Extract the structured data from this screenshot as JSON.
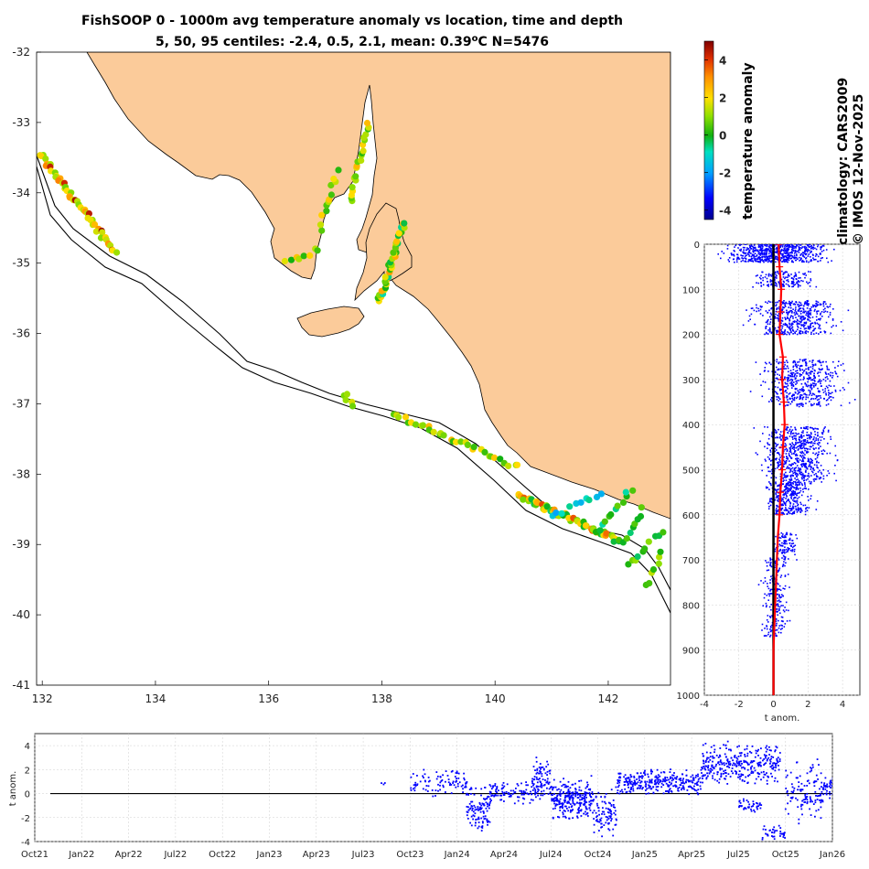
{
  "title_line1": "FishSOOP 0 - 1000m avg temperature anomaly vs location, time and depth",
  "title_line2_prefix": "5, 50, 95 centiles: -2.4, 0.5, 2.1, mean: 0.39",
  "title_line2_unit_sup": "o",
  "title_line2_suffix": "C N=5476",
  "side_text_1": "climatology: CARS2009",
  "side_text_2": "© IMOS 12-Nov-2025",
  "colorbar": {
    "label": "temperature anomaly",
    "range": [
      -4.5,
      5
    ],
    "ticks": [
      "4",
      "2",
      "0",
      "-2",
      "-4"
    ],
    "tick_values": [
      4,
      2,
      0,
      -2,
      -4
    ]
  },
  "colors": {
    "land": "#fbcb9a",
    "ocean": "#ffffff",
    "points": "#0000ff",
    "profile": "#ff0000"
  },
  "map": {
    "lon_range": [
      131.9,
      143.1
    ],
    "lat_range": [
      -41,
      -32
    ],
    "x_ticks": [
      "132",
      "134",
      "136",
      "138",
      "140",
      "142"
    ],
    "y_ticks": [
      "-32",
      "-33",
      "-34",
      "-35",
      "-36",
      "-37",
      "-38",
      "-39",
      "-40",
      "-41"
    ]
  },
  "chart_data": [
    {
      "type": "scatter",
      "name": "map",
      "title": "FishSOOP 0 - 1000m avg temperature anomaly vs location, time and depth",
      "xlabel": "",
      "ylabel": "",
      "xlim": [
        131.9,
        143.1
      ],
      "ylim": [
        -41,
        -32
      ],
      "color_variable": "temperature anomaly",
      "tracks": [
        {
          "name": "west-shelf",
          "from": [
            131.95,
            -33.45
          ],
          "to": [
            133.3,
            -34.85
          ],
          "n": 50,
          "anoms": [
            1.6,
            0.9,
            2.0,
            1.2,
            2.6,
            3.0,
            1.4,
            4.4
          ]
        },
        {
          "name": "spencer-gulf",
          "from": [
            137.45,
            -34.1
          ],
          "to": [
            137.75,
            -33.0
          ],
          "n": 22,
          "anoms": [
            1.0,
            0.4,
            1.8,
            2.2,
            0.8,
            1.3
          ]
        },
        {
          "name": "spencer-east",
          "from": [
            136.9,
            -34.5
          ],
          "to": [
            137.2,
            -33.7
          ],
          "n": 12,
          "anoms": [
            0.6,
            1.2,
            2.0,
            0.3
          ]
        },
        {
          "name": "spencer-mouth",
          "from": [
            136.3,
            -35.0
          ],
          "to": [
            136.9,
            -34.8
          ],
          "n": 8,
          "anoms": [
            1.5,
            0.2,
            2.2
          ]
        },
        {
          "name": "gulf-st-vincent",
          "from": [
            137.95,
            -35.55
          ],
          "to": [
            138.4,
            -34.4
          ],
          "n": 40,
          "anoms": [
            1.8,
            0.3,
            2.2,
            0.9,
            -0.5,
            1.4,
            2.6,
            0.0
          ]
        },
        {
          "name": "kangaroo-south",
          "from": [
            137.3,
            -36.85
          ],
          "to": [
            137.5,
            -37.0
          ],
          "n": 5,
          "anoms": [
            0.8,
            1.3
          ]
        },
        {
          "name": "bonney-shelf",
          "from": [
            138.2,
            -37.15
          ],
          "to": [
            140.4,
            -37.9
          ],
          "n": 34,
          "anoms": [
            0.6,
            1.5,
            0.9,
            2.2,
            0.3,
            1.8
          ]
        },
        {
          "name": "portland-shelf",
          "from": [
            140.4,
            -38.3
          ],
          "to": [
            142.2,
            -38.95
          ],
          "n": 55,
          "anoms": [
            0.5,
            1.9,
            2.8,
            3.6,
            0.9,
            1.2,
            2.2,
            0.0,
            -0.4
          ]
        },
        {
          "name": "offshore-line-1",
          "from": [
            141.0,
            -38.6
          ],
          "to": [
            141.9,
            -38.25
          ],
          "n": 10,
          "anoms": [
            -1.6,
            -1.9,
            -1.2,
            -0.6
          ]
        },
        {
          "name": "offshore-line-2",
          "from": [
            141.8,
            -38.85
          ],
          "to": [
            142.4,
            -38.2
          ],
          "n": 12,
          "anoms": [
            0.3,
            0.0,
            -0.5,
            0.6
          ]
        },
        {
          "name": "offshore-line-3",
          "from": [
            142.3,
            -39.0
          ],
          "to": [
            142.6,
            -38.5
          ],
          "n": 8,
          "anoms": [
            0.2,
            0.8,
            -0.3
          ]
        },
        {
          "name": "offshore-line-4",
          "from": [
            142.35,
            -39.3
          ],
          "to": [
            142.95,
            -38.8
          ],
          "n": 10,
          "anoms": [
            0.0,
            0.5,
            1.0,
            -0.2
          ]
        },
        {
          "name": "offshore-line-5",
          "from": [
            142.7,
            -39.6
          ],
          "to": [
            142.95,
            -39.1
          ],
          "n": 7,
          "anoms": [
            0.1,
            0.7,
            1.4
          ]
        }
      ]
    },
    {
      "type": "scatter",
      "name": "depth-profile",
      "xlabel": "t anom.",
      "ylabel": "",
      "xlim": [
        -4,
        5
      ],
      "ylim": [
        1000,
        0
      ],
      "x_ticks": [
        "-4",
        "-2",
        "0",
        "2",
        "4"
      ],
      "y_ticks": [
        "0",
        "100",
        "200",
        "300",
        "400",
        "500",
        "600",
        "700",
        "800",
        "900",
        "1000"
      ],
      "point_clusters": [
        {
          "depth": [
            0,
            40
          ],
          "anom_range": [
            -3.8,
            4.0
          ],
          "n": 650
        },
        {
          "depth": [
            60,
            95
          ],
          "anom_range": [
            -1.6,
            2.9
          ],
          "n": 160
        },
        {
          "depth": [
            125,
            200
          ],
          "anom_range": [
            -2.1,
            4.6
          ],
          "n": 480
        },
        {
          "depth": [
            255,
            360
          ],
          "anom_range": [
            -1.6,
            4.9
          ],
          "n": 520
        },
        {
          "depth": [
            405,
            530
          ],
          "anom_range": [
            -1.4,
            4.2
          ],
          "n": 640
        },
        {
          "depth": [
            530,
            600
          ],
          "anom_range": [
            -1.0,
            2.7
          ],
          "n": 320
        },
        {
          "depth": [
            640,
            700
          ],
          "anom_range": [
            -0.3,
            1.6
          ],
          "n": 110
        },
        {
          "depth": [
            700,
            870
          ],
          "anom_range": [
            -0.9,
            1.1
          ],
          "n": 240
        }
      ],
      "mean_profile": {
        "depth": [
          0,
          50,
          100,
          150,
          200,
          250,
          300,
          350,
          400,
          450,
          500,
          550,
          600,
          650,
          700,
          750,
          800,
          850,
          900,
          950,
          1000
        ],
        "anom": [
          0.3,
          0.35,
          0.45,
          0.4,
          0.35,
          0.55,
          0.5,
          0.6,
          0.65,
          0.55,
          0.5,
          0.4,
          0.35,
          0.25,
          0.2,
          0.15,
          0.1,
          0.05,
          0.0,
          0.0,
          0.0
        ]
      },
      "zero_line": 0
    },
    {
      "type": "scatter",
      "name": "time-series",
      "xlabel": "",
      "ylabel": "t anom.",
      "xlim": [
        "Oct21",
        "Jan26"
      ],
      "ylim": [
        -4,
        5
      ],
      "x_ticks": [
        "Oct21",
        "Jan22",
        "Apr22",
        "Jul22",
        "Oct22",
        "Jan23",
        "Apr23",
        "Jul23",
        "Oct23",
        "Jan24",
        "Apr24",
        "Jul24",
        "Oct24",
        "Jan25",
        "Apr25",
        "Jul25",
        "Oct25",
        "Jan26"
      ],
      "y_ticks": [
        "4",
        "2",
        "0",
        "-2",
        "-4"
      ],
      "point_clusters": [
        {
          "t": [
            7.3,
            7.5
          ],
          "anom_range": [
            0.6,
            1.1
          ],
          "n": 3
        },
        {
          "t": [
            8.0,
            9.2
          ],
          "anom_range": [
            -0.3,
            2.2
          ],
          "n": 90
        },
        {
          "t": [
            9.2,
            9.7
          ],
          "anom_range": [
            -3.3,
            1.2
          ],
          "n": 110
        },
        {
          "t": [
            9.7,
            10.6
          ],
          "anom_range": [
            -1.0,
            1.0
          ],
          "n": 90
        },
        {
          "t": [
            10.6,
            11.0
          ],
          "anom_range": [
            -0.9,
            3.1
          ],
          "n": 90
        },
        {
          "t": [
            11.0,
            11.9
          ],
          "anom_range": [
            -2.4,
            1.5
          ],
          "n": 260
        },
        {
          "t": [
            11.9,
            12.4
          ],
          "anom_range": [
            -3.8,
            0.6
          ],
          "n": 90
        },
        {
          "t": [
            12.4,
            14.2
          ],
          "anom_range": [
            -0.2,
            2.1
          ],
          "n": 300
        },
        {
          "t": [
            14.2,
            15.9
          ],
          "anom_range": [
            0.6,
            4.4
          ],
          "n": 330
        },
        {
          "t": [
            15.0,
            15.5
          ],
          "anom_range": [
            -1.7,
            -0.4
          ],
          "n": 40
        },
        {
          "t": [
            15.5,
            16.0
          ],
          "anom_range": [
            -3.9,
            -2.6
          ],
          "n": 40
        },
        {
          "t": [
            16.0,
            16.8
          ],
          "anom_range": [
            -2.7,
            2.9
          ],
          "n": 120
        },
        {
          "t": [
            16.8,
            17.1
          ],
          "anom_range": [
            -0.5,
            1.5
          ],
          "n": 50
        }
      ],
      "zero_line": 0
    }
  ]
}
